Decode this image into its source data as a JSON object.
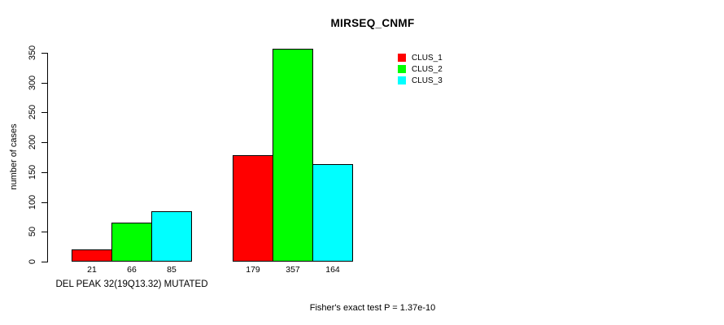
{
  "chart_data": {
    "type": "bar",
    "title": "MIRSEQ_CNMF",
    "ylabel": "number of cases",
    "xlabel": "",
    "categories": [
      "DEL PEAK 32(19Q13.32) MUTATED",
      ""
    ],
    "series": [
      {
        "name": "CLUS_1",
        "color": "#ff0000",
        "values": [
          21,
          179
        ]
      },
      {
        "name": "CLUS_2",
        "color": "#00ff00",
        "values": [
          66,
          357
        ]
      },
      {
        "name": "CLUS_3",
        "color": "#00ffff",
        "values": [
          85,
          164
        ]
      }
    ],
    "ylim": [
      0,
      350
    ],
    "yticks": [
      0,
      50,
      100,
      150,
      200,
      250,
      300,
      350
    ],
    "bar_value_labels_shown": true,
    "grid": false,
    "legend_position": "top-right",
    "bar_border_color": "#000000",
    "annotation": "Fisher's exact test P = 1.37e-10"
  }
}
